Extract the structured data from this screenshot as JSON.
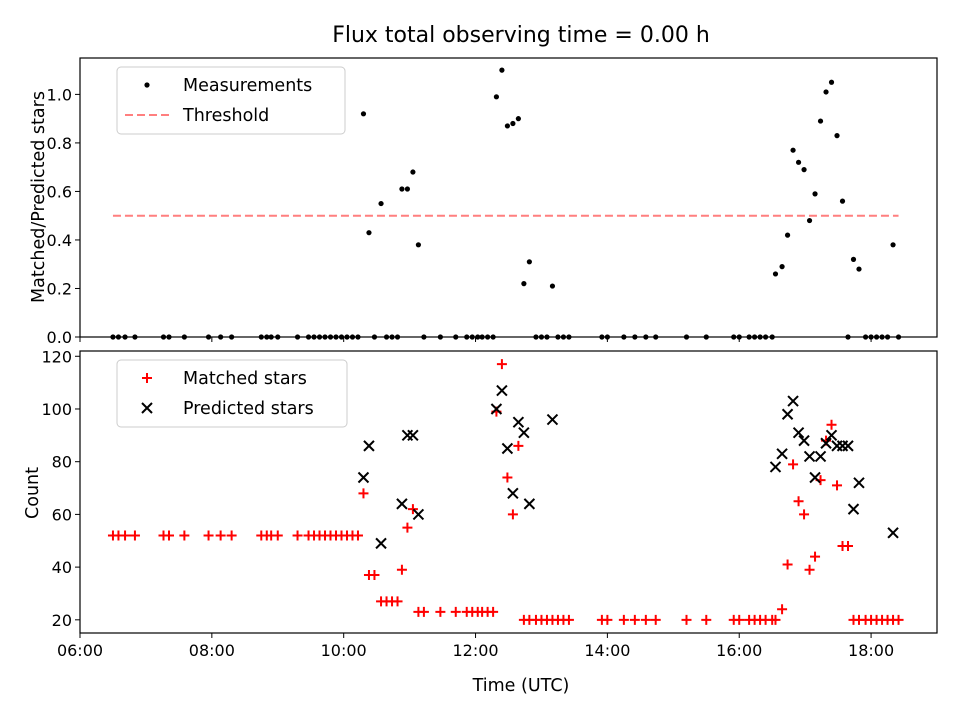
{
  "chart_data": [
    {
      "type": "scatter",
      "title": "Flux total observing time = 0.00 h",
      "xlabel": "",
      "ylabel": "Matched/Predicted stars",
      "ylim": [
        0,
        1.15
      ],
      "yticks": [
        "0.0",
        "0.2",
        "0.4",
        "0.6",
        "0.8",
        "1.0"
      ],
      "xlim": [
        "06:00",
        "19:00"
      ],
      "legend_position": "top-left",
      "series": [
        {
          "name": "Measurements",
          "color": "#000000",
          "marker": "dot",
          "points": [
            [
              "06:30",
              0
            ],
            [
              "06:35",
              0
            ],
            [
              "06:41",
              0
            ],
            [
              "06:50",
              0
            ],
            [
              "07:16",
              0
            ],
            [
              "07:21",
              0
            ],
            [
              "07:35",
              0
            ],
            [
              "07:57",
              0
            ],
            [
              "08:08",
              0
            ],
            [
              "08:18",
              0
            ],
            [
              "08:45",
              0
            ],
            [
              "08:50",
              0
            ],
            [
              "08:54",
              0
            ],
            [
              "09:00",
              0
            ],
            [
              "09:18",
              0
            ],
            [
              "09:28",
              0
            ],
            [
              "09:33",
              0
            ],
            [
              "09:38",
              0
            ],
            [
              "09:43",
              0
            ],
            [
              "09:48",
              0
            ],
            [
              "09:53",
              0
            ],
            [
              "09:58",
              0
            ],
            [
              "10:03",
              0
            ],
            [
              "10:08",
              0
            ],
            [
              "10:13",
              0
            ],
            [
              "10:18",
              0.92
            ],
            [
              "10:23",
              0.43
            ],
            [
              "10:28",
              0
            ],
            [
              "10:34",
              0.55
            ],
            [
              "10:39",
              0
            ],
            [
              "10:44",
              0
            ],
            [
              "10:49",
              0
            ],
            [
              "10:53",
              0.61
            ],
            [
              "10:58",
              0.61
            ],
            [
              "11:03",
              0.68
            ],
            [
              "11:08",
              0.38
            ],
            [
              "11:13",
              0
            ],
            [
              "11:28",
              0
            ],
            [
              "11:42",
              0
            ],
            [
              "11:52",
              0
            ],
            [
              "11:57",
              0
            ],
            [
              "12:02",
              0
            ],
            [
              "12:06",
              0
            ],
            [
              "12:11",
              0
            ],
            [
              "12:16",
              0
            ],
            [
              "12:19",
              0.99
            ],
            [
              "12:24",
              1.1
            ],
            [
              "12:29",
              0.87
            ],
            [
              "12:34",
              0.88
            ],
            [
              "12:39",
              0.9
            ],
            [
              "12:44",
              0.22
            ],
            [
              "12:49",
              0.31
            ],
            [
              "12:55",
              0
            ],
            [
              "13:00",
              0
            ],
            [
              "13:05",
              0
            ],
            [
              "13:10",
              0.21
            ],
            [
              "13:15",
              0
            ],
            [
              "13:20",
              0
            ],
            [
              "13:25",
              0
            ],
            [
              "13:55",
              0
            ],
            [
              "14:00",
              0
            ],
            [
              "14:15",
              0
            ],
            [
              "14:25",
              0
            ],
            [
              "14:35",
              0
            ],
            [
              "14:44",
              0
            ],
            [
              "15:12",
              0
            ],
            [
              "15:30",
              0
            ],
            [
              "15:55",
              0
            ],
            [
              "16:00",
              0
            ],
            [
              "16:09",
              0
            ],
            [
              "16:14",
              0
            ],
            [
              "16:19",
              0
            ],
            [
              "16:24",
              0
            ],
            [
              "16:30",
              0
            ],
            [
              "16:33",
              0.26
            ],
            [
              "16:39",
              0.29
            ],
            [
              "16:44",
              0.42
            ],
            [
              "16:49",
              0.77
            ],
            [
              "16:54",
              0.72
            ],
            [
              "16:59",
              0.69
            ],
            [
              "17:04",
              0.48
            ],
            [
              "17:09",
              0.59
            ],
            [
              "17:14",
              0.89
            ],
            [
              "17:19",
              1.01
            ],
            [
              "17:24",
              1.05
            ],
            [
              "17:29",
              0.83
            ],
            [
              "17:34",
              0.56
            ],
            [
              "17:39",
              0
            ],
            [
              "17:44",
              0.32
            ],
            [
              "17:49",
              0.28
            ],
            [
              "17:55",
              0
            ],
            [
              "18:00",
              0
            ],
            [
              "18:05",
              0
            ],
            [
              "18:10",
              0
            ],
            [
              "18:15",
              0
            ],
            [
              "18:20",
              0.38
            ],
            [
              "18:25",
              0
            ]
          ]
        },
        {
          "name": "Threshold",
          "color": "#ff7f7f",
          "marker": "dashed-line",
          "points": [
            [
              "06:30",
              0.5
            ],
            [
              "18:25",
              0.5
            ]
          ]
        }
      ]
    },
    {
      "type": "scatter",
      "title": "",
      "xlabel": "Time (UTC)",
      "ylabel": "Count",
      "ylim": [
        15,
        122
      ],
      "yticks": [
        "20",
        "40",
        "60",
        "80",
        "100",
        "120"
      ],
      "xlim": [
        "06:00",
        "19:00"
      ],
      "xticks": [
        "06:00",
        "08:00",
        "10:00",
        "12:00",
        "14:00",
        "16:00",
        "18:00"
      ],
      "legend_position": "top-left",
      "series": [
        {
          "name": "Matched stars",
          "color": "#ff0000",
          "marker": "plus",
          "points": [
            [
              "06:30",
              52
            ],
            [
              "06:35",
              52
            ],
            [
              "06:41",
              52
            ],
            [
              "06:50",
              52
            ],
            [
              "07:16",
              52
            ],
            [
              "07:21",
              52
            ],
            [
              "07:35",
              52
            ],
            [
              "07:57",
              52
            ],
            [
              "08:08",
              52
            ],
            [
              "08:18",
              52
            ],
            [
              "08:45",
              52
            ],
            [
              "08:50",
              52
            ],
            [
              "08:54",
              52
            ],
            [
              "09:00",
              52
            ],
            [
              "09:18",
              52
            ],
            [
              "09:28",
              52
            ],
            [
              "09:33",
              52
            ],
            [
              "09:38",
              52
            ],
            [
              "09:43",
              52
            ],
            [
              "09:48",
              52
            ],
            [
              "09:53",
              52
            ],
            [
              "09:58",
              52
            ],
            [
              "10:03",
              52
            ],
            [
              "10:08",
              52
            ],
            [
              "10:13",
              52
            ],
            [
              "10:18",
              68
            ],
            [
              "10:23",
              37
            ],
            [
              "10:28",
              37
            ],
            [
              "10:34",
              27
            ],
            [
              "10:39",
              27
            ],
            [
              "10:44",
              27
            ],
            [
              "10:49",
              27
            ],
            [
              "10:53",
              39
            ],
            [
              "10:58",
              55
            ],
            [
              "11:03",
              62
            ],
            [
              "11:08",
              23
            ],
            [
              "11:13",
              23
            ],
            [
              "11:28",
              23
            ],
            [
              "11:42",
              23
            ],
            [
              "11:52",
              23
            ],
            [
              "11:57",
              23
            ],
            [
              "12:02",
              23
            ],
            [
              "12:06",
              23
            ],
            [
              "12:11",
              23
            ],
            [
              "12:16",
              23
            ],
            [
              "12:19",
              99
            ],
            [
              "12:24",
              117
            ],
            [
              "12:29",
              74
            ],
            [
              "12:34",
              60
            ],
            [
              "12:39",
              86
            ],
            [
              "12:44",
              20
            ],
            [
              "12:49",
              20
            ],
            [
              "12:55",
              20
            ],
            [
              "13:00",
              20
            ],
            [
              "13:05",
              20
            ],
            [
              "13:10",
              20
            ],
            [
              "13:15",
              20
            ],
            [
              "13:20",
              20
            ],
            [
              "13:25",
              20
            ],
            [
              "13:55",
              20
            ],
            [
              "14:00",
              20
            ],
            [
              "14:15",
              20
            ],
            [
              "14:25",
              20
            ],
            [
              "14:35",
              20
            ],
            [
              "14:44",
              20
            ],
            [
              "15:12",
              20
            ],
            [
              "15:30",
              20
            ],
            [
              "15:55",
              20
            ],
            [
              "16:00",
              20
            ],
            [
              "16:09",
              20
            ],
            [
              "16:14",
              20
            ],
            [
              "16:19",
              20
            ],
            [
              "16:24",
              20
            ],
            [
              "16:30",
              20
            ],
            [
              "16:33",
              20
            ],
            [
              "16:39",
              24
            ],
            [
              "16:44",
              41
            ],
            [
              "16:49",
              79
            ],
            [
              "16:54",
              65
            ],
            [
              "16:59",
              60
            ],
            [
              "17:04",
              39
            ],
            [
              "17:09",
              44
            ],
            [
              "17:14",
              73
            ],
            [
              "17:19",
              88
            ],
            [
              "17:24",
              94
            ],
            [
              "17:29",
              71
            ],
            [
              "17:34",
              48
            ],
            [
              "17:39",
              48
            ],
            [
              "17:44",
              20
            ],
            [
              "17:49",
              20
            ],
            [
              "17:55",
              20
            ],
            [
              "18:00",
              20
            ],
            [
              "18:05",
              20
            ],
            [
              "18:10",
              20
            ],
            [
              "18:15",
              20
            ],
            [
              "18:20",
              20
            ],
            [
              "18:25",
              20
            ]
          ]
        },
        {
          "name": "Predicted stars",
          "color": "#000000",
          "marker": "cross",
          "points": [
            [
              "10:18",
              74
            ],
            [
              "10:23",
              86
            ],
            [
              "10:34",
              49
            ],
            [
              "10:53",
              64
            ],
            [
              "10:58",
              90
            ],
            [
              "11:03",
              90
            ],
            [
              "11:08",
              60
            ],
            [
              "12:19",
              100
            ],
            [
              "12:24",
              107
            ],
            [
              "12:29",
              85
            ],
            [
              "12:34",
              68
            ],
            [
              "12:39",
              95
            ],
            [
              "12:44",
              91
            ],
            [
              "12:49",
              64
            ],
            [
              "13:10",
              96
            ],
            [
              "16:33",
              78
            ],
            [
              "16:39",
              83
            ],
            [
              "16:44",
              98
            ],
            [
              "16:49",
              103
            ],
            [
              "16:54",
              91
            ],
            [
              "16:59",
              88
            ],
            [
              "17:04",
              82
            ],
            [
              "17:09",
              74
            ],
            [
              "17:14",
              82
            ],
            [
              "17:19",
              87
            ],
            [
              "17:24",
              90
            ],
            [
              "17:29",
              86
            ],
            [
              "17:34",
              86
            ],
            [
              "17:39",
              86
            ],
            [
              "17:44",
              62
            ],
            [
              "17:49",
              72
            ],
            [
              "18:20",
              53
            ]
          ]
        }
      ]
    }
  ]
}
